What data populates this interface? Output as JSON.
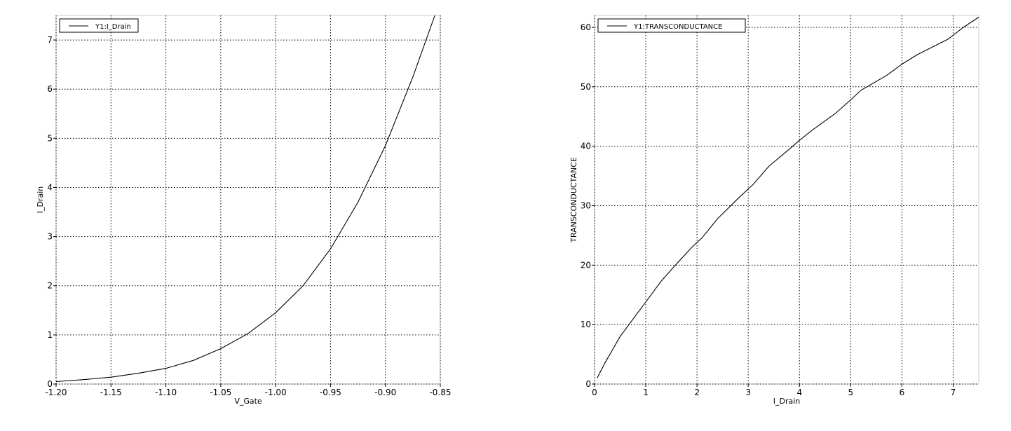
{
  "chart_data": [
    {
      "type": "line",
      "xlabel": "V_Gate",
      "ylabel": "I_Drain",
      "xlim": [
        -1.2,
        -0.85
      ],
      "ylim": [
        0,
        7.5
      ],
      "x_ticks": [
        -1.2,
        -1.15,
        -1.1,
        -1.05,
        -1.0,
        -0.95,
        -0.9,
        -0.85
      ],
      "x_tick_labels": [
        "-1.20",
        "-1.15",
        "-1.10",
        "-1.05",
        "-1.00",
        "-0.95",
        "-0.90",
        "-0.85"
      ],
      "y_ticks": [
        0,
        1,
        2,
        3,
        4,
        5,
        6,
        7
      ],
      "y_tick_labels": [
        "0",
        "1",
        "2",
        "3",
        "4",
        "5",
        "6",
        "7"
      ],
      "grid": true,
      "legend": {
        "placement": "top-left",
        "label": "Y1:I_Drain"
      },
      "series": [
        {
          "name": "Y1:I_Drain",
          "x": [
            -1.2,
            -1.175,
            -1.15,
            -1.125,
            -1.1,
            -1.075,
            -1.05,
            -1.025,
            -1.0,
            -0.975,
            -0.95,
            -0.925,
            -0.9,
            -0.875,
            -0.855
          ],
          "y": [
            0.05,
            0.09,
            0.14,
            0.22,
            0.32,
            0.48,
            0.72,
            1.03,
            1.45,
            2.0,
            2.75,
            3.7,
            4.85,
            6.25,
            7.5
          ]
        }
      ]
    },
    {
      "type": "line",
      "xlabel": "I_Drain",
      "ylabel": "TRANSCONDUCTANCE",
      "xlim": [
        0,
        7.5
      ],
      "ylim": [
        0,
        62
      ],
      "x_ticks": [
        0,
        1,
        2,
        3,
        4,
        5,
        6,
        7
      ],
      "x_tick_labels": [
        "0",
        "1",
        "2",
        "3",
        "4",
        "5",
        "6",
        "7"
      ],
      "y_ticks": [
        0,
        10,
        20,
        30,
        40,
        50,
        60
      ],
      "y_tick_labels": [
        "0",
        "10",
        "20",
        "30",
        "40",
        "50",
        "60"
      ],
      "grid": true,
      "legend": {
        "placement": "top-left",
        "label": "Y1:TRANSCONDUCTANCE"
      },
      "series": [
        {
          "name": "Y1:TRANSCONDUCTANCE",
          "x": [
            0.05,
            0.2,
            0.5,
            0.8,
            1.0,
            1.3,
            1.6,
            1.9,
            2.1,
            2.4,
            2.8,
            3.1,
            3.4,
            3.8,
            4.0,
            4.25,
            4.7,
            5.0,
            5.2,
            5.7,
            6.0,
            6.3,
            6.9,
            7.2,
            7.5
          ],
          "y": [
            1.0,
            3.5,
            8.0,
            11.5,
            13.8,
            17.3,
            20.2,
            23.0,
            24.6,
            27.8,
            31.2,
            33.6,
            36.6,
            39.5,
            41.0,
            42.7,
            45.5,
            47.8,
            49.4,
            51.9,
            53.8,
            55.4,
            58.0,
            60.0,
            61.7
          ]
        }
      ]
    }
  ]
}
